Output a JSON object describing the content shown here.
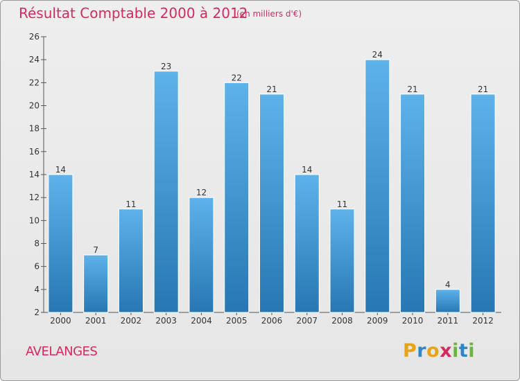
{
  "header": {
    "title": "Résultat Comptable 2000 à 2012",
    "subtitle": "(en milliers d'€)"
  },
  "footer": {
    "commune": "AVELANGES",
    "logo_letters": [
      {
        "char": "P",
        "color": "#e8a418"
      },
      {
        "char": "r",
        "color": "#2e86c8"
      },
      {
        "char": "o",
        "color": "#e8a418"
      },
      {
        "char": "x",
        "color": "#d62a5e"
      },
      {
        "char": "i",
        "color": "#6cb33f"
      },
      {
        "char": "t",
        "color": "#2e86c8"
      },
      {
        "char": "i",
        "color": "#6cb33f"
      }
    ]
  },
  "chart_data": {
    "type": "bar",
    "title": "Résultat Comptable 2000 à 2012",
    "subtitle": "(en milliers d'€)",
    "xlabel": "",
    "ylabel": "",
    "categories": [
      "2000",
      "2001",
      "2002",
      "2003",
      "2004",
      "2005",
      "2006",
      "2007",
      "2008",
      "2009",
      "2010",
      "2011",
      "2012"
    ],
    "values": [
      14,
      7,
      11,
      23,
      12,
      22,
      21,
      14,
      11,
      24,
      21,
      4,
      21
    ],
    "ylim": [
      2,
      26
    ],
    "yticks": [
      2,
      4,
      6,
      8,
      10,
      12,
      14,
      16,
      18,
      20,
      22,
      24,
      26
    ],
    "grid": false,
    "bar_color_top": "#5eb2ea",
    "bar_color_bottom": "#2677b3",
    "title_color": "#d62a5e"
  }
}
